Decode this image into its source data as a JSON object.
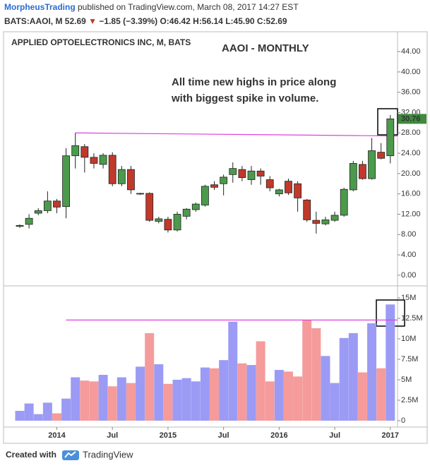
{
  "header": {
    "author": "MorpheusTrading",
    "published": " published on TradingView.com, March 08, 2017 14:27 EST",
    "symbol": "BATS:AAOI, M",
    "last": "52.69",
    "arrow": "▼",
    "change": "−1.85 (−3.39%)",
    "ohlc": "O:46.42 H:56.14 L:45.90 C:52.69"
  },
  "chart_data": [
    {
      "type": "candlestick",
      "title": "APPLIED OPTOELECTRONICS INC, M, BATS",
      "annotations": [
        "AAOI - MONTHLY",
        "All time new highs in price along",
        "with biggest spike in volume."
      ],
      "categories": [
        null,
        null,
        null,
        null,
        "2014",
        null,
        null,
        null,
        null,
        null,
        "Jul",
        null,
        null,
        null,
        null,
        null,
        "2015",
        null,
        null,
        null,
        null,
        null,
        "Jul",
        null,
        null,
        null,
        null,
        null,
        "2016",
        null,
        null,
        null,
        null,
        null,
        "Jul",
        null,
        null,
        null,
        null,
        null,
        "2017"
      ],
      "open": [
        9.6,
        10,
        12.2,
        12.7,
        14.6,
        13.5,
        23.5,
        25.3,
        23.2,
        21.8,
        23.6,
        18,
        20.8,
        16,
        16.1,
        10.6,
        11,
        8.9,
        11.6,
        12.9,
        13.8,
        17.8,
        18,
        19.8,
        20.8,
        18.8,
        20.5,
        18.8,
        16,
        18.5,
        18,
        14.8,
        10.8,
        10.1,
        10.8,
        11.8,
        16.8,
        21.8,
        19,
        24.2,
        23.5
      ],
      "high": [
        10,
        12,
        13.2,
        16.5,
        15,
        25,
        28,
        25.8,
        24,
        24,
        24.2,
        21.5,
        21.5,
        16.2,
        16.3,
        11.5,
        11.5,
        12.5,
        13.2,
        14.3,
        17.8,
        18.5,
        19.8,
        22.2,
        21.5,
        21.5,
        21,
        19.5,
        17,
        19,
        18.5,
        15,
        12.5,
        11.5,
        12.5,
        17.2,
        22.5,
        22.5,
        27,
        26,
        31.5
      ],
      "low": [
        9.3,
        9.2,
        11.8,
        12.2,
        12.2,
        11.2,
        21,
        20.2,
        21,
        21,
        17.5,
        17.5,
        16,
        15.8,
        10.5,
        10.2,
        8.4,
        8.6,
        11,
        12.5,
        13.5,
        16.8,
        15.7,
        18.2,
        18.5,
        17.8,
        17.8,
        16.5,
        15.5,
        15.8,
        12.5,
        10.5,
        8.2,
        9.8,
        10.5,
        11.5,
        16.5,
        18.8,
        18.8,
        22.8,
        22
      ],
      "close": [
        9.8,
        11.2,
        12.7,
        14.6,
        13.4,
        23.5,
        25.5,
        23.2,
        22,
        23.6,
        18,
        20.8,
        16.8,
        16.1,
        10.8,
        11.1,
        8.9,
        12,
        13,
        14,
        17.5,
        17.3,
        19.3,
        21,
        19.2,
        20.5,
        19.5,
        17.2,
        16.8,
        16.2,
        15.2,
        10.9,
        10.2,
        10.9,
        11.8,
        16.9,
        22,
        19,
        24.5,
        23,
        30.76
      ],
      "up_color": "#4c9a4c",
      "down_color": "#c0392b",
      "last_color": "#3d8b3d",
      "price_line": {
        "values": [
          28,
          27.4
        ],
        "color": "#e040e0"
      },
      "ylim": [
        -2.1,
        47.9
      ],
      "yticks": [
        {
          "value": 0,
          "label": "0.00"
        },
        {
          "value": 4,
          "label": "4.00"
        },
        {
          "value": 8,
          "label": "8.00"
        },
        {
          "value": 12,
          "label": "12.00"
        },
        {
          "value": 16,
          "label": "16.00"
        },
        {
          "value": 20,
          "label": "20.00"
        },
        {
          "value": 24,
          "label": "24.00"
        },
        {
          "value": 28,
          "label": "28.00"
        },
        {
          "value": 32,
          "label": "32.00"
        },
        {
          "value": 36,
          "label": "36.00"
        },
        {
          "value": 40,
          "label": "40.00"
        },
        {
          "value": 44,
          "label": "44.00"
        }
      ]
    },
    {
      "type": "bar",
      "values": [
        1200000,
        2100000,
        800000,
        2200000,
        900000,
        2700000,
        5300000,
        4900000,
        4800000,
        5600000,
        4200000,
        5300000,
        4600000,
        6600000,
        10700000,
        6900000,
        4500000,
        5000000,
        5200000,
        4800000,
        6500000,
        6400000,
        7400000,
        12100000,
        7000000,
        6800000,
        9700000,
        4800000,
        6200000,
        6000000,
        5400000,
        12300000,
        11300000,
        7900000,
        4600000,
        10100000,
        10700000,
        5900000,
        11900000,
        6400000,
        14200000
      ],
      "up_color": "#9b9bf5",
      "down_color": "#f59b9b",
      "volume_line": {
        "values": [
          12300000,
          12300000
        ],
        "color": "#e040e0"
      },
      "ylim": [
        -780000,
        16470000
      ],
      "yticks": [
        0,
        {
          "value": 2500000,
          "label": "2.5M"
        },
        {
          "value": 5000000,
          "label": "5M"
        },
        {
          "value": 7500000,
          "label": "7.5M"
        },
        {
          "value": 10000000,
          "label": "10M"
        },
        {
          "value": 12500000,
          "label": "12.5M"
        },
        {
          "value": 15000000,
          "label": "15M"
        }
      ]
    }
  ],
  "footer": {
    "created": "Created with",
    "brand": "TradingView"
  }
}
